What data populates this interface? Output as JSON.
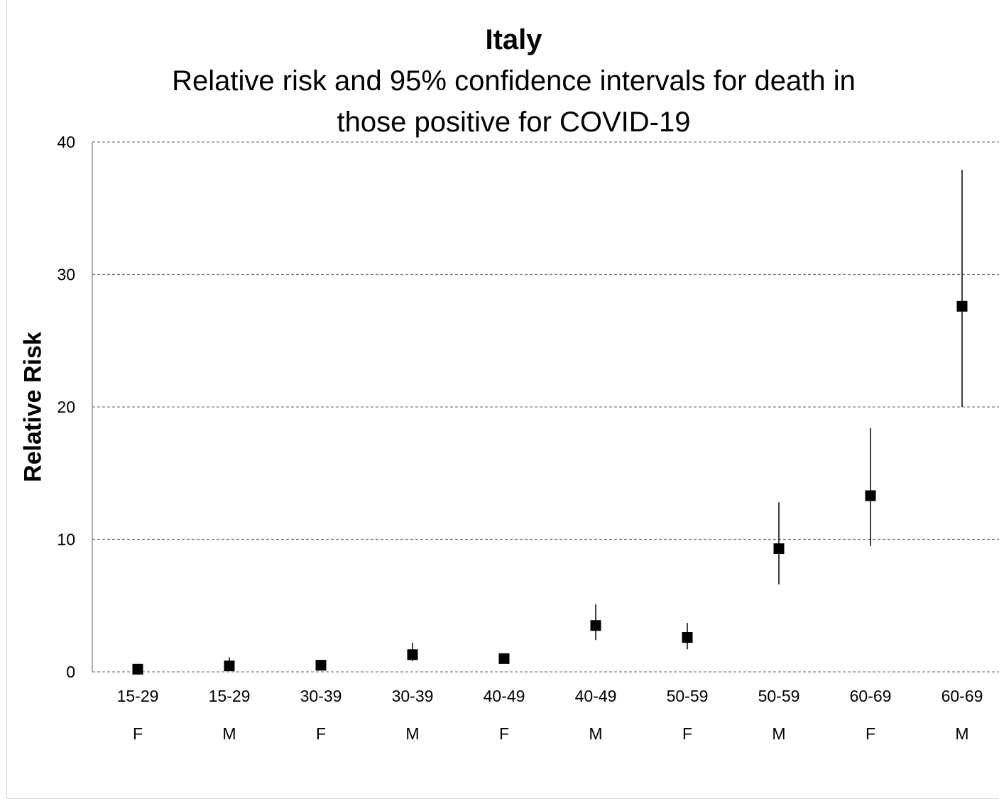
{
  "chart_data": {
    "type": "scatter",
    "title": "Italy",
    "subtitle_line1": "Relative risk and 95% confidence intervals for death in",
    "subtitle_line2": "those positive for COVID-19",
    "xlabel": "",
    "ylabel": "Relative Risk",
    "ylim": [
      0,
      40
    ],
    "yticks": [
      0,
      10,
      20,
      30,
      40
    ],
    "grid": true,
    "categories": [
      {
        "age": "15-29",
        "sex": "F"
      },
      {
        "age": "15-29",
        "sex": "M"
      },
      {
        "age": "30-39",
        "sex": "F"
      },
      {
        "age": "30-39",
        "sex": "M"
      },
      {
        "age": "40-49",
        "sex": "F"
      },
      {
        "age": "40-49",
        "sex": "M"
      },
      {
        "age": "50-59",
        "sex": "F"
      },
      {
        "age": "50-59",
        "sex": "M"
      },
      {
        "age": "60-69",
        "sex": "F"
      },
      {
        "age": "60-69",
        "sex": "M"
      }
    ],
    "values": [
      0.2,
      0.45,
      0.5,
      1.3,
      1.0,
      3.5,
      2.6,
      9.3,
      13.3,
      27.6
    ],
    "ci_low": [
      0.0,
      0.1,
      0.2,
      0.8,
      0.7,
      2.4,
      1.7,
      6.6,
      9.5,
      20.0
    ],
    "ci_high": [
      0.4,
      1.1,
      0.9,
      2.2,
      1.3,
      5.1,
      3.7,
      12.8,
      18.4,
      37.9
    ],
    "marker": "square",
    "color": "#000000",
    "grid_color": "#7f7f7f"
  }
}
